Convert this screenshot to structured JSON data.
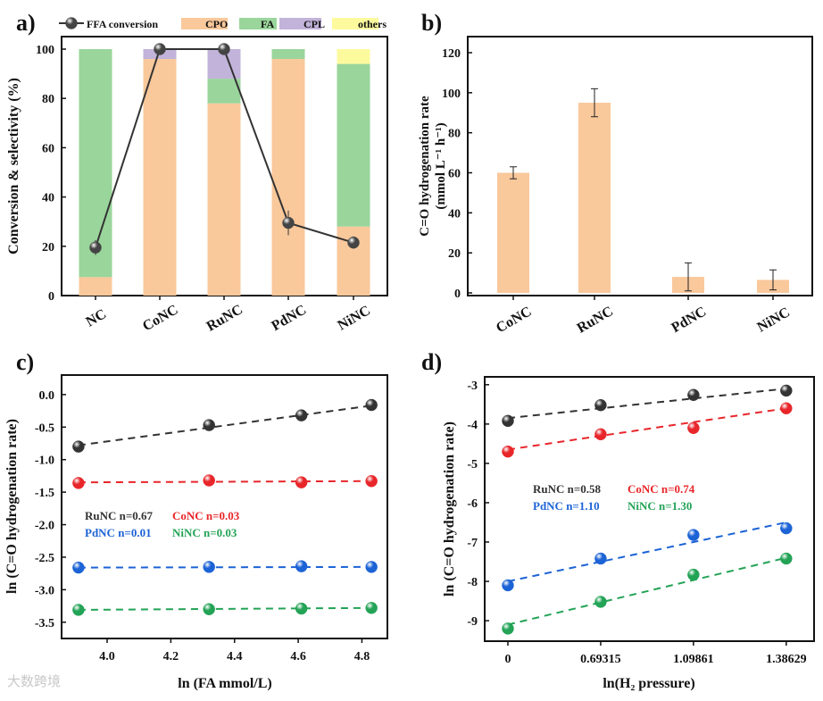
{
  "watermark": "大数跨境",
  "chart_data": [
    {
      "panel": "a)",
      "type": "bar",
      "stacked": true,
      "categories": [
        "NC",
        "CoNC",
        "RuNC",
        "PdNC",
        "NiNC"
      ],
      "ylabel": "Conversion & selectivity (%)",
      "xlabel": "",
      "ylim": [
        0,
        105
      ],
      "yticks": [
        0,
        20,
        40,
        60,
        80,
        100
      ],
      "series": [
        {
          "name": "CPO",
          "color": "#f9c89b",
          "values": [
            7.5,
            96,
            78,
            96,
            28
          ]
        },
        {
          "name": "FA",
          "color": "#9ad59b",
          "values": [
            92.5,
            0,
            10,
            4,
            66
          ]
        },
        {
          "name": "CPL",
          "color": "#c2b3da",
          "values": [
            0,
            4,
            12,
            0,
            0
          ]
        },
        {
          "name": "others",
          "color": "#fdfa9e",
          "values": [
            0,
            0,
            0,
            0,
            6
          ]
        }
      ],
      "line": {
        "name": "FFA conversion",
        "color": "#333333",
        "values": [
          19.5,
          100,
          100,
          29.5,
          21.5
        ],
        "errors": [
          3,
          0,
          0,
          5,
          2.5
        ]
      },
      "legend": "top"
    },
    {
      "panel": "b)",
      "type": "bar",
      "categories": [
        "CoNC",
        "RuNC",
        "PdNC",
        "NiNC"
      ],
      "values": [
        60,
        95,
        8,
        6.5
      ],
      "errors": [
        3,
        7,
        7,
        5
      ],
      "color": "#f9c89b",
      "ylabel": "C=O hydrogenation rate",
      "ylabel2": "(mmol L⁻¹ h⁻¹)",
      "ylim": [
        0,
        128
      ],
      "yticks": [
        0,
        20,
        40,
        60,
        80,
        100,
        120
      ]
    },
    {
      "panel": "c)",
      "type": "scatter",
      "xlabel": "ln (FA mmol/L)",
      "ylabel": "ln (C=O hydrogenation rate)",
      "xlim": [
        3.857,
        4.88
      ],
      "ylim": [
        -3.75,
        0.3
      ],
      "xticks": [
        "4.0",
        "4.2",
        "4.4",
        "4.6",
        "4.8"
      ],
      "yticks": [
        "0.0",
        "-0.5",
        "-1.0",
        "-1.5",
        "-2.0",
        "-2.5",
        "-3.0",
        "-3.5"
      ],
      "x": [
        3.91,
        4.32,
        4.61,
        4.83
      ],
      "series": [
        {
          "name": "RuNC",
          "label": "RuNC n=0.67",
          "color": "#333333",
          "values": [
            -0.8,
            -0.47,
            -0.32,
            -0.16
          ],
          "fit": [
            -0.78,
            -0.17
          ]
        },
        {
          "name": "CoNC",
          "label": "CoNC n=0.03",
          "color": "#e8262a",
          "values": [
            -1.36,
            -1.32,
            -1.35,
            -1.33
          ],
          "fit": [
            -1.35,
            -1.33
          ]
        },
        {
          "name": "PdNC",
          "label": "PdNC n=0.01",
          "color": "#1c63d6",
          "values": [
            -2.66,
            -2.65,
            -2.64,
            -2.65
          ],
          "fit": [
            -2.66,
            -2.65
          ]
        },
        {
          "name": "NiNC",
          "label": "NiNC n=0.03",
          "color": "#23a356",
          "values": [
            -3.31,
            -3.3,
            -3.29,
            -3.28
          ],
          "fit": [
            -3.31,
            -3.28
          ]
        }
      ]
    },
    {
      "panel": "d)",
      "type": "scatter",
      "xlabel": "ln(H₂ pressure)",
      "ylabel": "ln (C=O hydrogenation rate)",
      "xlim": [
        -0.25,
        3.3
      ],
      "ylim": [
        -9.52,
        -2.8
      ],
      "x_categories": [
        "0",
        "0.69315",
        "1.09861",
        "1.38629"
      ],
      "yticks": [
        "-3",
        "-4",
        "-5",
        "-6",
        "-7",
        "-8",
        "-9"
      ],
      "series": [
        {
          "name": "RuNC",
          "label": "RuNC n=0.58",
          "color": "#333333",
          "values": [
            -3.92,
            -3.52,
            -3.26,
            -3.15
          ],
          "fit": [
            -3.85,
            -3.1
          ]
        },
        {
          "name": "CoNC",
          "label": "CoNC n=0.74",
          "color": "#e8262a",
          "values": [
            -4.7,
            -4.26,
            -4.1,
            -3.6
          ],
          "fit": [
            -4.65,
            -3.6
          ]
        },
        {
          "name": "PdNC",
          "label": "PdNC n=1.10",
          "color": "#1c63d6",
          "values": [
            -8.1,
            -7.42,
            -6.82,
            -6.65
          ],
          "fit": [
            -8.0,
            -6.5
          ]
        },
        {
          "name": "NiNC",
          "label": "NiNC n=1.30",
          "color": "#23a356",
          "values": [
            -9.2,
            -8.52,
            -7.83,
            -7.42
          ],
          "fit": [
            -9.1,
            -7.4
          ]
        }
      ]
    }
  ]
}
